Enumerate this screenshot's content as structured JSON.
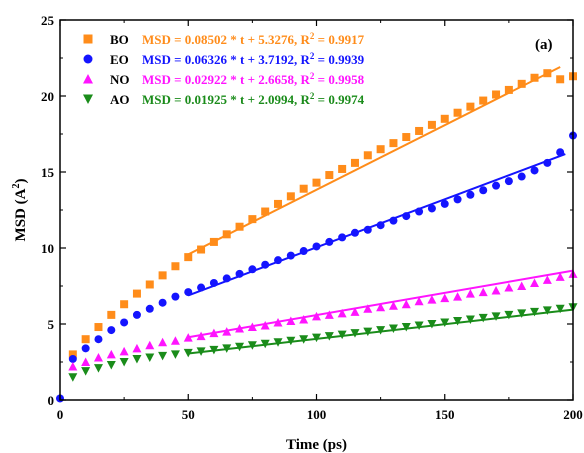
{
  "chart_data": {
    "type": "scatter",
    "panel_label": "(a)",
    "xlabel": "Time (ps)",
    "ylabel_main": "MSD (A",
    "ylabel_sup": "2",
    "ylabel_close": ")",
    "xlim": [
      0,
      200
    ],
    "ylim": [
      0,
      25
    ],
    "xticks": [
      0,
      50,
      100,
      150,
      200
    ],
    "yticks": [
      0,
      5,
      10,
      15,
      20,
      25
    ],
    "grid": false,
    "legend_position": "top-left",
    "series": [
      {
        "name": "BO",
        "color": "#ff8c1a",
        "marker": "square",
        "fit_label": "MSD = 0.08502 * t + 5.3276, R",
        "fit_sup": "2",
        "fit_r2": " = 0.9917",
        "fit": {
          "slope": 0.08502,
          "intercept": 5.3276,
          "range": [
            50,
            195
          ]
        },
        "x": [
          5,
          10,
          15,
          20,
          25,
          30,
          35,
          40,
          45,
          50,
          55,
          60,
          65,
          70,
          75,
          80,
          85,
          90,
          95,
          100,
          105,
          110,
          115,
          120,
          125,
          130,
          135,
          140,
          145,
          150,
          155,
          160,
          165,
          170,
          175,
          180,
          185,
          190,
          195,
          200
        ],
        "y": [
          3.0,
          4.0,
          4.8,
          5.6,
          6.3,
          7.0,
          7.6,
          8.2,
          8.8,
          9.4,
          9.9,
          10.4,
          10.9,
          11.4,
          11.9,
          12.4,
          12.9,
          13.4,
          13.9,
          14.3,
          14.8,
          15.2,
          15.6,
          16.1,
          16.5,
          16.9,
          17.3,
          17.7,
          18.1,
          18.5,
          18.9,
          19.3,
          19.7,
          20.1,
          20.4,
          20.8,
          21.2,
          21.5,
          21.1,
          21.3
        ]
      },
      {
        "name": "EO",
        "color": "#1414ff",
        "marker": "circle",
        "fit_label": "MSD = 0.06326 * t + 3.7192, R",
        "fit_sup": "2",
        "fit_r2": " = 0.9939",
        "fit": {
          "slope": 0.06326,
          "intercept": 3.7192,
          "range": [
            50,
            197
          ]
        },
        "x": [
          0,
          5,
          10,
          15,
          20,
          25,
          30,
          35,
          40,
          45,
          50,
          55,
          60,
          65,
          70,
          75,
          80,
          85,
          90,
          95,
          100,
          105,
          110,
          115,
          120,
          125,
          130,
          135,
          140,
          145,
          150,
          155,
          160,
          165,
          170,
          175,
          180,
          185,
          190,
          195,
          200
        ],
        "y": [
          0.1,
          2.7,
          3.4,
          4.0,
          4.6,
          5.1,
          5.6,
          6.0,
          6.4,
          6.8,
          7.1,
          7.4,
          7.7,
          8.0,
          8.3,
          8.6,
          8.9,
          9.2,
          9.5,
          9.8,
          10.1,
          10.4,
          10.7,
          11.0,
          11.2,
          11.5,
          11.8,
          12.1,
          12.4,
          12.6,
          12.9,
          13.2,
          13.5,
          13.8,
          14.1,
          14.4,
          14.7,
          15.1,
          15.6,
          16.3,
          17.4
        ]
      },
      {
        "name": "NO",
        "color": "#ff14ff",
        "marker": "triangle-up",
        "fit_label": "MSD = 0.02922 * t + 2.6658, R",
        "fit_sup": "2",
        "fit_r2": " = 0.9958",
        "fit": {
          "slope": 0.02922,
          "intercept": 2.6658,
          "range": [
            50,
            200
          ]
        },
        "x": [
          5,
          10,
          15,
          20,
          25,
          30,
          35,
          40,
          45,
          50,
          55,
          60,
          65,
          70,
          75,
          80,
          85,
          90,
          95,
          100,
          105,
          110,
          115,
          120,
          125,
          130,
          135,
          140,
          145,
          150,
          155,
          160,
          165,
          170,
          175,
          180,
          185,
          190,
          195,
          200
        ],
        "y": [
          2.2,
          2.5,
          2.8,
          3.0,
          3.2,
          3.4,
          3.6,
          3.8,
          3.9,
          4.1,
          4.2,
          4.4,
          4.5,
          4.7,
          4.8,
          4.9,
          5.1,
          5.2,
          5.3,
          5.5,
          5.6,
          5.7,
          5.8,
          6.0,
          6.1,
          6.2,
          6.3,
          6.5,
          6.6,
          6.7,
          6.8,
          7.0,
          7.1,
          7.2,
          7.4,
          7.5,
          7.7,
          7.9,
          8.1,
          8.3
        ]
      },
      {
        "name": "AO",
        "color": "#1a8c1a",
        "marker": "triangle-down",
        "fit_label": "MSD = 0.01925 * t + 2.0994, R",
        "fit_sup": "2",
        "fit_r2": " = 0.9974",
        "fit": {
          "slope": 0.01925,
          "intercept": 2.0994,
          "range": [
            50,
            200
          ]
        },
        "x": [
          5,
          10,
          15,
          20,
          25,
          30,
          35,
          40,
          45,
          50,
          55,
          60,
          65,
          70,
          75,
          80,
          85,
          90,
          95,
          100,
          105,
          110,
          115,
          120,
          125,
          130,
          135,
          140,
          145,
          150,
          155,
          160,
          165,
          170,
          175,
          180,
          185,
          190,
          195,
          200
        ],
        "y": [
          1.5,
          1.9,
          2.1,
          2.3,
          2.5,
          2.7,
          2.8,
          2.9,
          3.0,
          3.1,
          3.2,
          3.3,
          3.4,
          3.5,
          3.6,
          3.7,
          3.8,
          3.9,
          4.0,
          4.1,
          4.2,
          4.3,
          4.4,
          4.5,
          4.6,
          4.7,
          4.8,
          4.9,
          5.0,
          5.1,
          5.2,
          5.3,
          5.4,
          5.5,
          5.6,
          5.7,
          5.8,
          5.9,
          6.0,
          6.1
        ]
      }
    ]
  }
}
